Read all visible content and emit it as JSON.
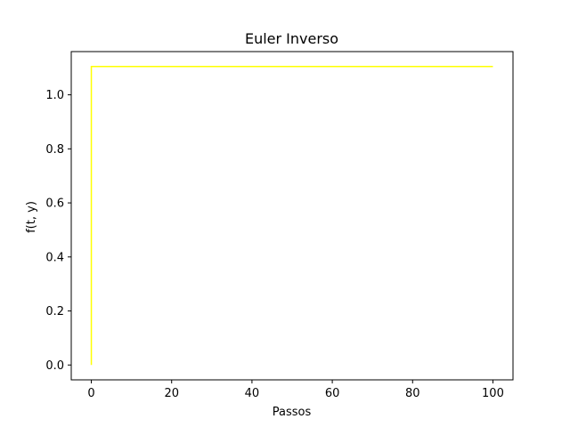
{
  "chart_data": {
    "type": "line",
    "title": "Euler Inverso",
    "xlabel": "Passos",
    "ylabel": "f(t, y)",
    "xlim": [
      -5,
      105
    ],
    "ylim": [
      -0.055,
      1.16
    ],
    "xticks": [
      0,
      20,
      40,
      60,
      80,
      100
    ],
    "xtick_labels": [
      "0",
      "20",
      "40",
      "60",
      "80",
      "100"
    ],
    "yticks": [
      0.0,
      0.2,
      0.4,
      0.6,
      0.8,
      1.0
    ],
    "ytick_labels": [
      "0.0",
      "0.2",
      "0.4",
      "0.6",
      "0.8",
      "1.0"
    ],
    "grid": false,
    "legend": "none",
    "series": [
      {
        "color": "#ffff00",
        "x": [
          0,
          0,
          100
        ],
        "y": [
          0.0,
          1.105,
          1.105
        ]
      }
    ]
  }
}
